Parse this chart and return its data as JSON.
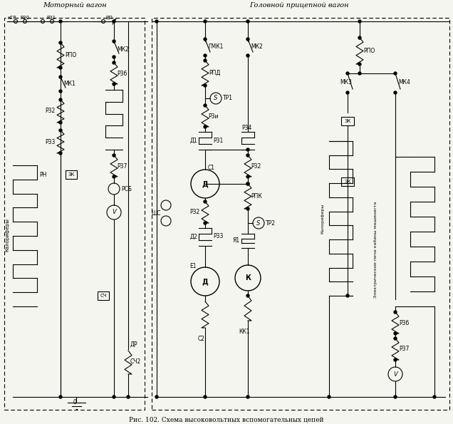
{
  "title": "Рис. 102. Схема высоковольтных вспомогательных цепей",
  "bg_color": "#f5f5f0",
  "line_color": "#000000",
  "fig_width": 6.36,
  "fig_height": 5.95,
  "left_panel_title": "Моторный вагон",
  "right_panel_title": "Головной прицепной вагон"
}
